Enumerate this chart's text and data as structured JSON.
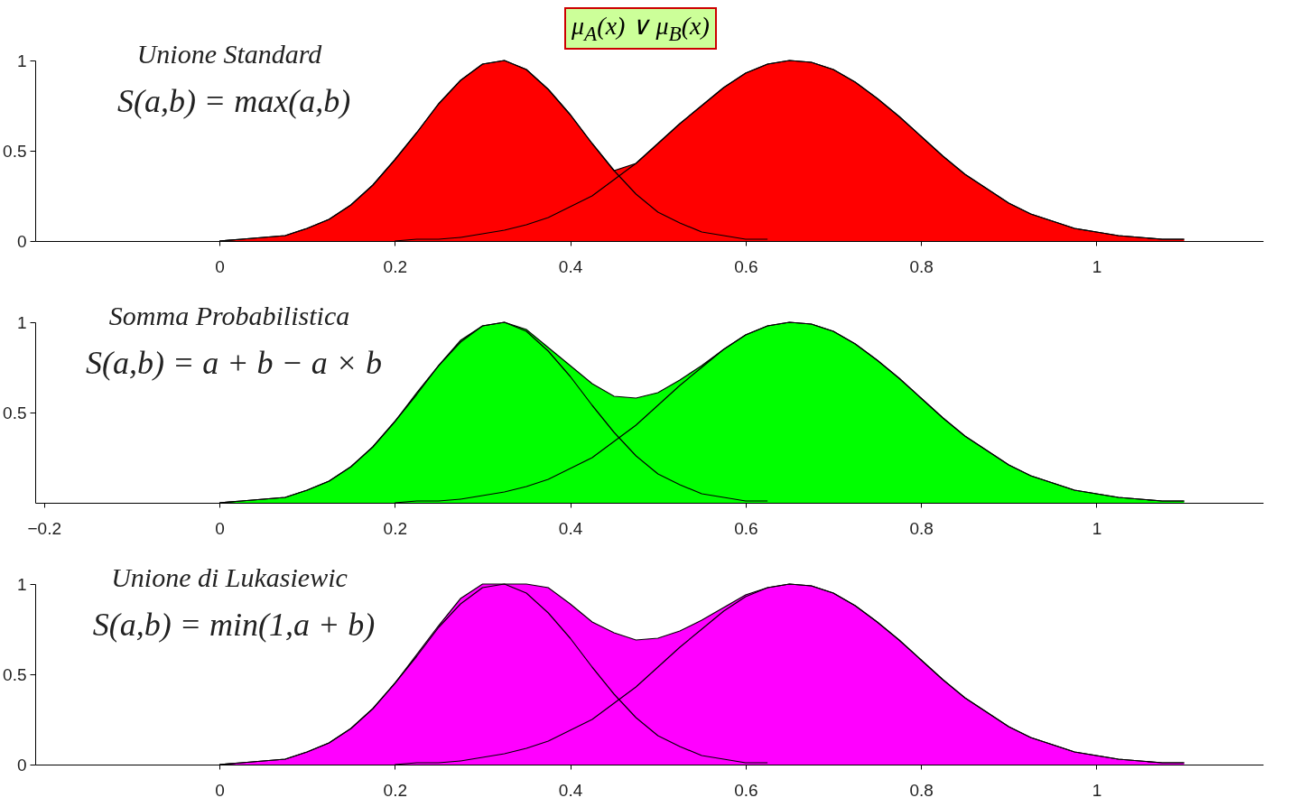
{
  "chart_data": [
    {
      "type": "area",
      "title": "μ$_{A}$(x) ∨ μ$_{B}$(x)",
      "annotations": [
        "Unione Standard",
        "S(a,b) = max(a,b)"
      ],
      "x": [
        0,
        0.025,
        0.05,
        0.075,
        0.1,
        0.125,
        0.15,
        0.175,
        0.2,
        0.225,
        0.25,
        0.275,
        0.3,
        0.325,
        0.35,
        0.375,
        0.4,
        0.425,
        0.45,
        0.475,
        0.5,
        0.525,
        0.55,
        0.575,
        0.6,
        0.625,
        0.65,
        0.675,
        0.7,
        0.725,
        0.75,
        0.775,
        0.8,
        0.825,
        0.85,
        0.875,
        0.9,
        0.925,
        0.95,
        0.975,
        1,
        1.025,
        1.05,
        1.075,
        1.1
      ],
      "series": [
        {
          "color": "#ff0000",
          "values": [
            0,
            0.01,
            0.02,
            0.03,
            0.07,
            0.12,
            0.2,
            0.31,
            0.45,
            0.6,
            0.76,
            0.89,
            0.98,
            1,
            0.95,
            0.84,
            0.7,
            0.54,
            0.39,
            0.43,
            0.54,
            0.65,
            0.75,
            0.85,
            0.93,
            0.98,
            1,
            0.99,
            0.95,
            0.88,
            0.79,
            0.69,
            0.58,
            0.47,
            0.37,
            0.29,
            0.21,
            0.15,
            0.11,
            0.07,
            0.05,
            0.03,
            0.02,
            0.01,
            0.01
          ]
        },
        {
          "type": "line",
          "color": "#000000",
          "x": [
            0,
            0.025,
            0.05,
            0.075,
            0.1,
            0.125,
            0.15,
            0.175,
            0.2,
            0.225,
            0.25,
            0.275,
            0.3,
            0.325,
            0.35,
            0.375,
            0.4,
            0.425,
            0.45,
            0.475,
            0.5,
            0.525,
            0.55,
            0.575,
            0.6,
            0.625
          ],
          "values": [
            0,
            0.01,
            0.02,
            0.03,
            0.07,
            0.12,
            0.2,
            0.31,
            0.45,
            0.6,
            0.76,
            0.89,
            0.98,
            1,
            0.95,
            0.84,
            0.7,
            0.54,
            0.39,
            0.26,
            0.16,
            0.1,
            0.05,
            0.03,
            0.01,
            0.01
          ]
        },
        {
          "type": "line",
          "color": "#000000",
          "x": [
            0.2,
            0.225,
            0.25,
            0.275,
            0.3,
            0.325,
            0.35,
            0.375,
            0.4,
            0.425,
            0.45,
            0.475,
            0.5,
            0.525,
            0.55,
            0.575,
            0.6,
            0.625,
            0.65,
            0.675,
            0.7,
            0.725,
            0.75,
            0.775,
            0.8,
            0.825,
            0.85,
            0.875,
            0.9,
            0.925,
            0.95,
            0.975,
            1,
            1.025,
            1.05,
            1.075,
            1.1
          ],
          "values": [
            0,
            0.01,
            0.01,
            0.02,
            0.04,
            0.06,
            0.09,
            0.13,
            0.19,
            0.25,
            0.34,
            0.43,
            0.54,
            0.65,
            0.75,
            0.85,
            0.93,
            0.98,
            1,
            0.99,
            0.95,
            0.88,
            0.79,
            0.69,
            0.58,
            0.47,
            0.37,
            0.29,
            0.21,
            0.15,
            0.11,
            0.07,
            0.05,
            0.03,
            0.02,
            0.01,
            0.01
          ]
        }
      ],
      "xlim": [
        -0.21,
        1.19
      ],
      "xticks": [
        0,
        0.2,
        0.4,
        0.6,
        0.8,
        1
      ],
      "ylim": [
        0,
        1
      ],
      "yticks": [
        0,
        0.5,
        1
      ],
      "grid": false
    },
    {
      "type": "area",
      "annotations": [
        "Somma Probabilistica",
        "S(a,b) = a + b − a × b"
      ],
      "x": [
        0,
        0.025,
        0.05,
        0.075,
        0.1,
        0.125,
        0.15,
        0.175,
        0.2,
        0.225,
        0.25,
        0.275,
        0.3,
        0.325,
        0.35,
        0.375,
        0.4,
        0.425,
        0.45,
        0.475,
        0.5,
        0.525,
        0.55,
        0.575,
        0.6,
        0.625,
        0.65,
        0.675,
        0.7,
        0.725,
        0.75,
        0.775,
        0.8,
        0.825,
        0.85,
        0.875,
        0.9,
        0.925,
        0.95,
        0.975,
        1,
        1.025,
        1.05,
        1.075,
        1.1
      ],
      "series": [
        {
          "color": "#00ff00",
          "values": [
            0,
            0.01,
            0.02,
            0.03,
            0.07,
            0.12,
            0.2,
            0.31,
            0.45,
            0.61,
            0.76,
            0.9,
            0.98,
            1,
            0.96,
            0.86,
            0.76,
            0.66,
            0.59,
            0.58,
            0.61,
            0.68,
            0.76,
            0.85,
            0.93,
            0.98,
            1,
            0.99,
            0.95,
            0.88,
            0.79,
            0.69,
            0.58,
            0.47,
            0.37,
            0.29,
            0.21,
            0.15,
            0.11,
            0.07,
            0.05,
            0.03,
            0.02,
            0.01,
            0.01
          ]
        },
        {
          "type": "line",
          "color": "#000000",
          "x": [
            0,
            0.025,
            0.05,
            0.075,
            0.1,
            0.125,
            0.15,
            0.175,
            0.2,
            0.225,
            0.25,
            0.275,
            0.3,
            0.325,
            0.35,
            0.375,
            0.4,
            0.425,
            0.45,
            0.475,
            0.5,
            0.525,
            0.55,
            0.575,
            0.6,
            0.625
          ],
          "values": [
            0,
            0.01,
            0.02,
            0.03,
            0.07,
            0.12,
            0.2,
            0.31,
            0.45,
            0.6,
            0.76,
            0.89,
            0.98,
            1,
            0.95,
            0.84,
            0.7,
            0.54,
            0.39,
            0.26,
            0.16,
            0.1,
            0.05,
            0.03,
            0.01,
            0.01
          ]
        },
        {
          "type": "line",
          "color": "#000000",
          "x": [
            0.2,
            0.225,
            0.25,
            0.275,
            0.3,
            0.325,
            0.35,
            0.375,
            0.4,
            0.425,
            0.45,
            0.475,
            0.5,
            0.525,
            0.55,
            0.575,
            0.6,
            0.625,
            0.65,
            0.675,
            0.7,
            0.725,
            0.75,
            0.775,
            0.8,
            0.825,
            0.85,
            0.875,
            0.9,
            0.925,
            0.95,
            0.975,
            1,
            1.025,
            1.05,
            1.075,
            1.1
          ],
          "values": [
            0,
            0.01,
            0.01,
            0.02,
            0.04,
            0.06,
            0.09,
            0.13,
            0.19,
            0.25,
            0.34,
            0.43,
            0.54,
            0.65,
            0.75,
            0.85,
            0.93,
            0.98,
            1,
            0.99,
            0.95,
            0.88,
            0.79,
            0.69,
            0.58,
            0.47,
            0.37,
            0.29,
            0.21,
            0.15,
            0.11,
            0.07,
            0.05,
            0.03,
            0.02,
            0.01,
            0.01
          ]
        }
      ],
      "xlim": [
        -0.21,
        1.19
      ],
      "xticks": [
        -0.2,
        0,
        0.2,
        0.4,
        0.6,
        0.8,
        1
      ],
      "ylim": [
        0,
        1
      ],
      "yticks": [
        0.5,
        1
      ],
      "grid": false
    },
    {
      "type": "area",
      "annotations": [
        "Unione di Lukasiewic",
        "S(a,b) = min(1,a + b)"
      ],
      "x": [
        0,
        0.025,
        0.05,
        0.075,
        0.1,
        0.125,
        0.15,
        0.175,
        0.2,
        0.225,
        0.25,
        0.275,
        0.3,
        0.325,
        0.35,
        0.375,
        0.4,
        0.425,
        0.45,
        0.475,
        0.5,
        0.525,
        0.55,
        0.575,
        0.6,
        0.625,
        0.65,
        0.675,
        0.7,
        0.725,
        0.75,
        0.775,
        0.8,
        0.825,
        0.85,
        0.875,
        0.9,
        0.925,
        0.95,
        0.975,
        1,
        1.025,
        1.05,
        1.075,
        1.1
      ],
      "series": [
        {
          "color": "#ff00ff",
          "values": [
            0,
            0.01,
            0.02,
            0.03,
            0.07,
            0.12,
            0.2,
            0.31,
            0.45,
            0.61,
            0.77,
            0.92,
            1,
            1,
            1,
            0.98,
            0.89,
            0.79,
            0.73,
            0.69,
            0.7,
            0.74,
            0.8,
            0.87,
            0.94,
            0.98,
            1,
            0.99,
            0.95,
            0.88,
            0.79,
            0.69,
            0.58,
            0.47,
            0.37,
            0.29,
            0.21,
            0.15,
            0.11,
            0.07,
            0.05,
            0.03,
            0.02,
            0.01,
            0.01
          ]
        },
        {
          "type": "line",
          "color": "#000000",
          "x": [
            0,
            0.025,
            0.05,
            0.075,
            0.1,
            0.125,
            0.15,
            0.175,
            0.2,
            0.225,
            0.25,
            0.275,
            0.3,
            0.325,
            0.35,
            0.375,
            0.4,
            0.425,
            0.45,
            0.475,
            0.5,
            0.525,
            0.55,
            0.575,
            0.6,
            0.625
          ],
          "values": [
            0,
            0.01,
            0.02,
            0.03,
            0.07,
            0.12,
            0.2,
            0.31,
            0.45,
            0.6,
            0.76,
            0.89,
            0.98,
            1,
            0.95,
            0.84,
            0.7,
            0.54,
            0.39,
            0.26,
            0.16,
            0.1,
            0.05,
            0.03,
            0.01,
            0.01
          ]
        },
        {
          "type": "line",
          "color": "#000000",
          "x": [
            0.2,
            0.225,
            0.25,
            0.275,
            0.3,
            0.325,
            0.35,
            0.375,
            0.4,
            0.425,
            0.45,
            0.475,
            0.5,
            0.525,
            0.55,
            0.575,
            0.6,
            0.625,
            0.65,
            0.675,
            0.7,
            0.725,
            0.75,
            0.775,
            0.8,
            0.825,
            0.85,
            0.875,
            0.9,
            0.925,
            0.95,
            0.975,
            1,
            1.025,
            1.05,
            1.075,
            1.1
          ],
          "values": [
            0,
            0.01,
            0.01,
            0.02,
            0.04,
            0.06,
            0.09,
            0.13,
            0.19,
            0.25,
            0.34,
            0.43,
            0.54,
            0.65,
            0.75,
            0.85,
            0.93,
            0.98,
            1,
            0.99,
            0.95,
            0.88,
            0.79,
            0.69,
            0.58,
            0.47,
            0.37,
            0.29,
            0.21,
            0.15,
            0.11,
            0.07,
            0.05,
            0.03,
            0.02,
            0.01,
            0.01
          ]
        }
      ],
      "xlim": [
        -0.21,
        1.19
      ],
      "xticks": [
        0,
        0.2,
        0.4,
        0.6,
        0.8,
        1
      ],
      "ylim": [
        0,
        1
      ],
      "yticks": [
        0,
        0.5,
        1
      ],
      "grid": false
    }
  ]
}
